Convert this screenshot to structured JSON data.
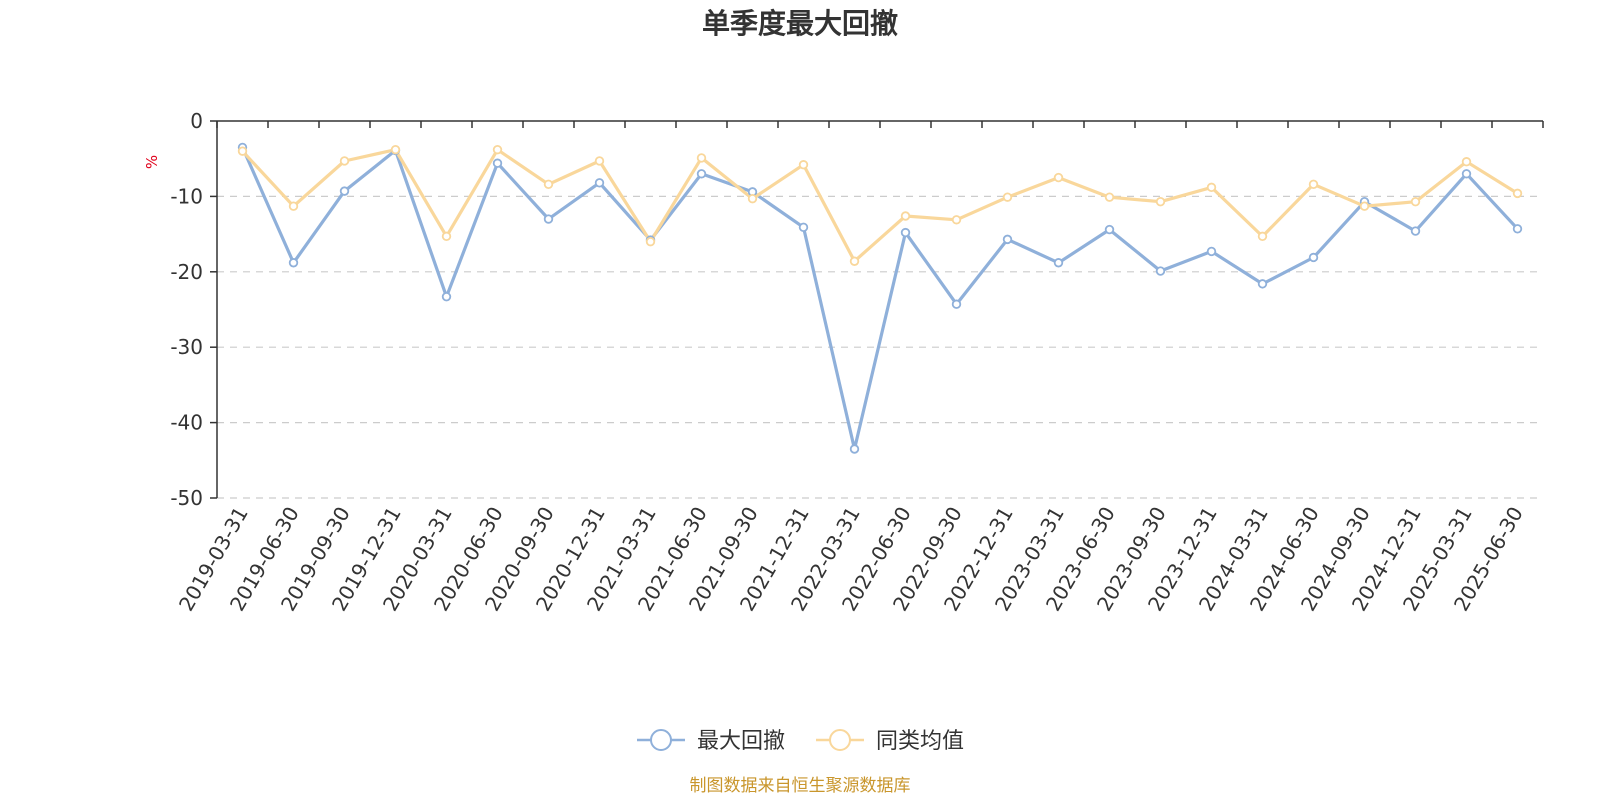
{
  "chart_data": {
    "type": "line",
    "title": "单季度最大回撤",
    "ylabel": "%",
    "ylim": [
      -50,
      0
    ],
    "yticks": [
      0,
      -10,
      -20,
      -30,
      -40,
      -50
    ],
    "grid": true,
    "legend_position": "bottom",
    "categories": [
      "2019-03-31",
      "2019-06-30",
      "2019-09-30",
      "2019-12-31",
      "2020-03-31",
      "2020-06-30",
      "2020-09-30",
      "2020-12-31",
      "2021-03-31",
      "2021-06-30",
      "2021-09-30",
      "2021-12-31",
      "2022-03-31",
      "2022-06-30",
      "2022-09-30",
      "2022-12-31",
      "2023-03-31",
      "2023-06-30",
      "2023-09-30",
      "2023-12-31",
      "2024-03-31",
      "2024-06-30",
      "2024-09-30",
      "2024-12-31",
      "2025-03-31",
      "2025-06-30"
    ],
    "series": [
      {
        "name": "最大回撤",
        "color": "#8fb0da",
        "values": [
          -3.5,
          -18.8,
          -9.3,
          -3.9,
          -23.3,
          -5.6,
          -13.0,
          -8.2,
          -15.8,
          -7.0,
          -9.4,
          -14.1,
          -43.5,
          -14.8,
          -24.3,
          -15.7,
          -18.8,
          -14.4,
          -19.9,
          -17.3,
          -21.6,
          -18.1,
          -10.7,
          -14.6,
          -7.0,
          -14.3
        ]
      },
      {
        "name": "同类均值",
        "color": "#f9d79b",
        "values": [
          -4.0,
          -11.3,
          -5.3,
          -3.8,
          -15.3,
          -3.8,
          -8.4,
          -5.3,
          -16.0,
          -4.9,
          -10.3,
          -5.8,
          -18.6,
          -12.6,
          -13.1,
          -10.1,
          -7.5,
          -10.1,
          -10.7,
          -8.8,
          -15.3,
          -8.4,
          -11.3,
          -10.7,
          -5.4,
          -9.6
        ]
      }
    ]
  },
  "footer": {
    "source": "制图数据来自恒生聚源数据库"
  }
}
